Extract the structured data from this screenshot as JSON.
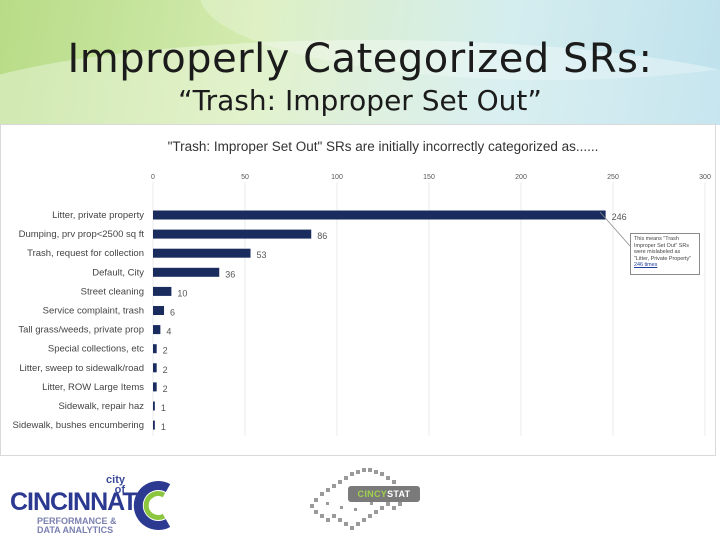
{
  "slide": {
    "title": "Improperly Categorized SRs:",
    "subtitle": "“Trash: Improper Set Out”"
  },
  "callout": {
    "text": "This means \"Trash Improper Set Out\" SRs were mislabeled as \"Litter, Private Property\"",
    "highlight": "246 times"
  },
  "logos": {
    "city_of": "city of",
    "cincinnati": "CINCINNATI",
    "pda_line1": "PERFORMANCE &",
    "pda_line2": "DATA ANALYTICS",
    "cincystat_a": "CINCY",
    "cincystat_b": "STAT"
  },
  "colors": {
    "bar": "#1a2c5e",
    "axis_text": "#555555",
    "title_text": "#333333"
  },
  "chart_data": {
    "type": "bar",
    "orientation": "horizontal",
    "title": "\"Trash: Improper Set Out\" SRs are initially incorrectly categorized as......",
    "categories": [
      "Litter, private property",
      "Dumping, prv prop<2500 sq ft",
      "Trash, request for collection",
      "Default, City",
      "Street cleaning",
      "Service complaint, trash",
      "Tall grass/weeds, private prop",
      "Special collections, etc",
      "Litter, sweep to sidewalk/road",
      "Litter, ROW Large Items",
      "Sidewalk, repair haz",
      "Sidewalk, bushes encumbering"
    ],
    "values": [
      246,
      86,
      53,
      36,
      10,
      6,
      4,
      2,
      2,
      2,
      1,
      1
    ],
    "x_ticks": [
      0,
      50,
      100,
      150,
      200,
      250,
      300
    ],
    "xlim": [
      0,
      300
    ],
    "axis_position": "top",
    "grid": true,
    "legend": "none"
  }
}
